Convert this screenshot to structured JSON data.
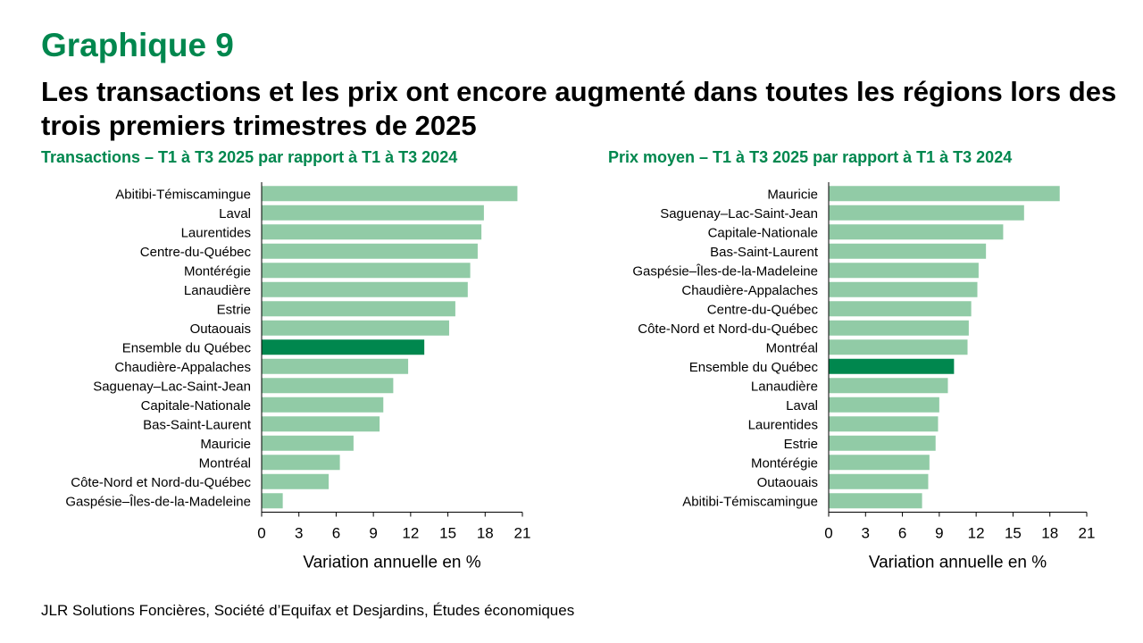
{
  "header": {
    "graph_label": "Graphique 9",
    "title": "Les transactions et les prix ont encore augmenté dans toutes les régions lors des trois premiers trimestres de 2025"
  },
  "colors": {
    "bar": "#91CBA6",
    "highlight": "#00874E",
    "accent": "#00874E"
  },
  "chart_data": [
    {
      "type": "bar",
      "orientation": "horizontal",
      "title": "Transactions – T1 à T3 2025 par rapport à T1 à T3 2024",
      "xlabel": "Variation annuelle en %",
      "xlim": [
        0,
        21
      ],
      "xticks": [
        "0",
        "3",
        "6",
        "9",
        "12",
        "15",
        "18",
        "21"
      ],
      "highlight": "Ensemble du Québec",
      "categories": [
        "Abitibi-Témiscamingue",
        "Laval",
        "Laurentides",
        "Centre-du-Québec",
        "Montérégie",
        "Lanaudière",
        "Estrie",
        "Outaouais",
        "Ensemble du Québec",
        "Chaudière-Appalaches",
        "Saguenay–Lac-Saint-Jean",
        "Capitale-Nationale",
        "Bas-Saint-Laurent",
        "Mauricie",
        "Montréal",
        "Côte-Nord et Nord-du-Québec",
        "Gaspésie–Îles-de-la-Madeleine"
      ],
      "values": [
        20.6,
        17.9,
        17.7,
        17.4,
        16.8,
        16.6,
        15.6,
        15.1,
        13.1,
        11.8,
        10.6,
        9.8,
        9.5,
        7.4,
        6.3,
        5.4,
        1.7
      ]
    },
    {
      "type": "bar",
      "orientation": "horizontal",
      "title": "Prix moyen – T1 à T3 2025 par rapport à T1 à T3 2024",
      "xlabel": "Variation annuelle en %",
      "xlim": [
        0,
        21
      ],
      "xticks": [
        "0",
        "3",
        "6",
        "9",
        "12",
        "15",
        "18",
        "21"
      ],
      "highlight": "Ensemble du Québec",
      "categories": [
        "Mauricie",
        "Saguenay–Lac-Saint-Jean",
        "Capitale-Nationale",
        "Bas-Saint-Laurent",
        "Gaspésie–Îles-de-la-Madeleine",
        "Chaudière-Appalaches",
        "Centre-du-Québec",
        "Côte-Nord et Nord-du-Québec",
        "Montréal",
        "Ensemble du Québec",
        "Lanaudière",
        "Laval",
        "Laurentides",
        "Estrie",
        "Montérégie",
        "Outaouais",
        "Abitibi-Témiscamingue"
      ],
      "values": [
        18.8,
        15.9,
        14.2,
        12.8,
        12.2,
        12.1,
        11.6,
        11.4,
        11.3,
        10.2,
        9.7,
        9.0,
        8.9,
        8.7,
        8.2,
        8.1,
        7.6
      ]
    }
  ],
  "source": "JLR Solutions Foncières, Société d’Equifax et Desjardins, Études économiques"
}
